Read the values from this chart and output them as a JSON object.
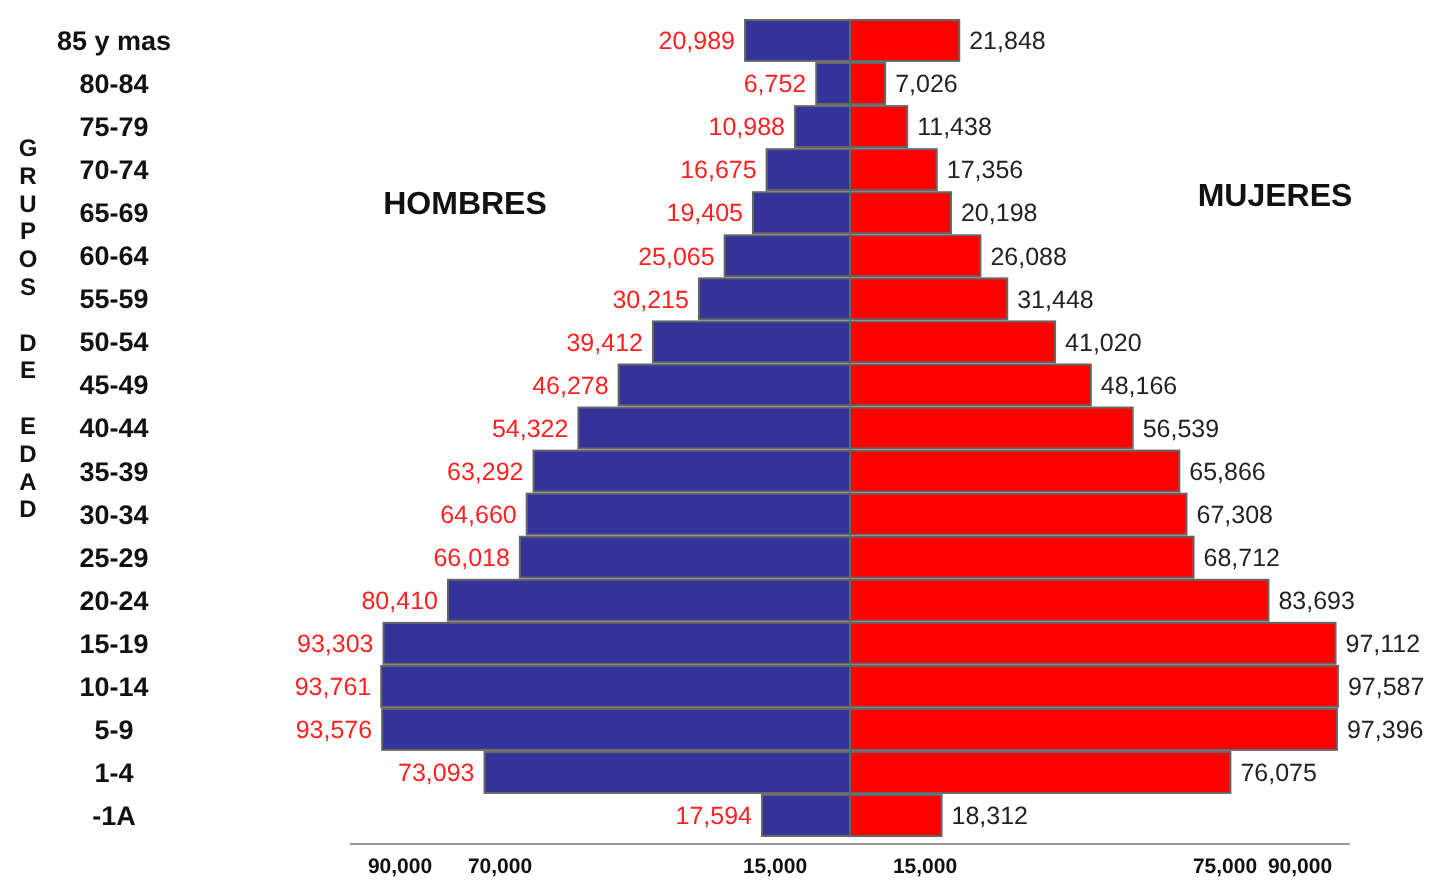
{
  "chart_data": [
    {
      "type": "bar",
      "orientation": "horizontal",
      "ylabel": "GRUPOS DE EDAD",
      "categories": [
        "85 y mas",
        "80-84",
        "75-79",
        "70-74",
        "65-69",
        "60-64",
        "55-59",
        "50-54",
        "45-49",
        "40-44",
        "35-39",
        "30-34",
        "25-29",
        "20-24",
        "15-19",
        "10-14",
        "5-9",
        "1-4",
        "-1A"
      ],
      "xlim": [
        100000,
        0
      ],
      "xticks": [
        {
          "value": 90000,
          "label": "90,000"
        },
        {
          "value": 70000,
          "label": "70,000"
        },
        {
          "value": 15000,
          "label": "15,000"
        }
      ],
      "series": [
        {
          "name": "HOMBRES",
          "color": "#333399",
          "values": [
            20989,
            6752,
            10988,
            16675,
            19405,
            25065,
            30215,
            39412,
            46278,
            54322,
            63292,
            64660,
            66018,
            80410,
            93303,
            93761,
            93576,
            73093,
            17594
          ],
          "value_labels": [
            "20,989",
            "6,752",
            "10,988",
            "16,675",
            "19,405",
            "25,065",
            "30,215",
            "39,412",
            "46,278",
            "54,322",
            "63,292",
            "64,660",
            "66,018",
            "80,410",
            "93,303",
            "93,761",
            "93,576",
            "73,093",
            "17,594"
          ]
        }
      ]
    },
    {
      "type": "bar",
      "orientation": "horizontal",
      "tick_labels": "x",
      "categories": [
        null,
        null,
        null,
        null,
        null,
        null,
        null,
        null,
        null,
        null,
        null,
        null,
        null,
        null,
        null,
        null,
        null,
        null,
        null
      ],
      "xlim": [
        0,
        100000
      ],
      "xticks": [
        {
          "value": 15000,
          "label": "15,000"
        },
        {
          "value": 75000,
          "label": "75,000"
        },
        {
          "value": 90000,
          "label": "90,000"
        }
      ],
      "series": [
        {
          "name": "MUJERES",
          "color": "#ff0000",
          "values": [
            21848,
            7026,
            11438,
            17356,
            20198,
            26088,
            31448,
            41020,
            48166,
            56539,
            65866,
            67308,
            68712,
            83693,
            97112,
            97587,
            97396,
            76075,
            18312
          ],
          "value_labels": [
            "21,848",
            "7,026",
            "11,438",
            "17,356",
            "20,198",
            "26,088",
            "31,448",
            "41,020",
            "48,166",
            "56,539",
            "65,866",
            "67,308",
            "68,712",
            "83,693",
            "97,112",
            "97,587",
            "97,396",
            "76,075",
            "18,312"
          ]
        }
      ]
    }
  ]
}
